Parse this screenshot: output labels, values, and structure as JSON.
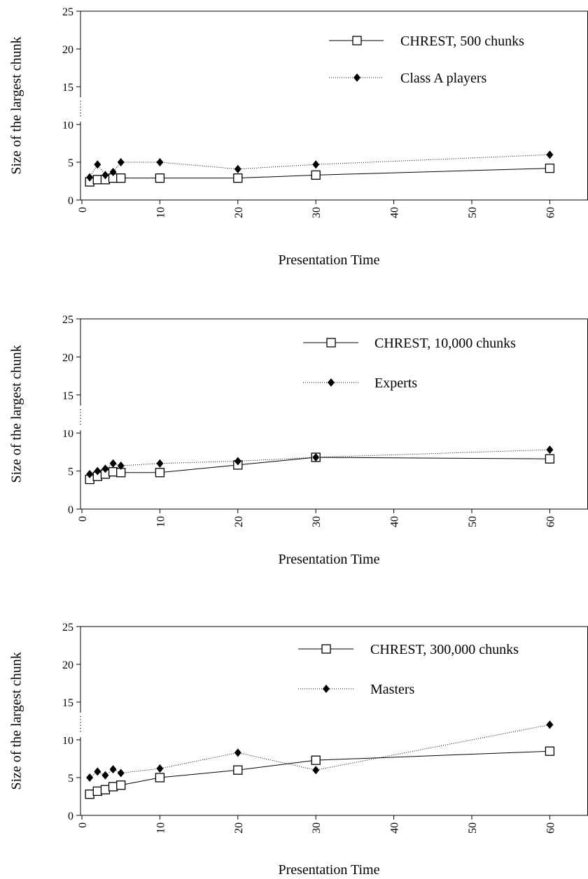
{
  "figure": {
    "background": "#ffffff"
  },
  "chart_data": [
    {
      "type": "line",
      "xlabel": "Presentation Time",
      "ylabel": "Size of the largest chunk",
      "xlim": [
        0,
        65
      ],
      "ylim": [
        0,
        25
      ],
      "xticks": [
        "0",
        "10",
        "20",
        "30",
        "40",
        "50",
        "60"
      ],
      "yticks": [
        "0",
        "5",
        "10",
        "15",
        "20",
        "25"
      ],
      "axis_break_between": [
        10,
        15
      ],
      "legend": "top-right",
      "grid": false,
      "series": [
        {
          "name": "CHREST, 500 chunks",
          "marker": "open-square",
          "line": "solid",
          "x": [
            1,
            2,
            3,
            4,
            5,
            10,
            20,
            30,
            60
          ],
          "y": [
            2.4,
            2.7,
            2.7,
            2.9,
            2.9,
            2.9,
            2.9,
            3.3,
            4.2
          ]
        },
        {
          "name": "Class A players",
          "marker": "filled-diamond",
          "line": "dotted",
          "x": [
            1,
            2,
            3,
            4,
            5,
            10,
            20,
            30,
            60
          ],
          "y": [
            3.0,
            4.7,
            3.3,
            3.7,
            5.0,
            5.0,
            4.1,
            4.7,
            6.0
          ]
        }
      ]
    },
    {
      "type": "line",
      "xlabel": "Presentation Time",
      "ylabel": "Size of the largest chunk",
      "xlim": [
        0,
        65
      ],
      "ylim": [
        0,
        25
      ],
      "xticks": [
        "0",
        "10",
        "20",
        "30",
        "40",
        "50",
        "60"
      ],
      "yticks": [
        "0",
        "5",
        "10",
        "15",
        "20",
        "25"
      ],
      "axis_break_between": [
        10,
        15
      ],
      "legend": "top-right",
      "grid": false,
      "series": [
        {
          "name": "CHREST, 10,000 chunks",
          "marker": "open-square",
          "line": "solid",
          "x": [
            1,
            2,
            3,
            4,
            5,
            10,
            20,
            30,
            60
          ],
          "y": [
            3.9,
            4.3,
            4.6,
            4.9,
            4.8,
            4.8,
            5.8,
            6.8,
            6.6
          ]
        },
        {
          "name": "Experts",
          "marker": "filled-diamond",
          "line": "dotted",
          "x": [
            1,
            2,
            3,
            4,
            5,
            10,
            20,
            30,
            60
          ],
          "y": [
            4.6,
            5.0,
            5.3,
            6.0,
            5.7,
            6.0,
            6.3,
            6.8,
            7.8
          ]
        }
      ]
    },
    {
      "type": "line",
      "xlabel": "Presentation Time",
      "ylabel": "Size of the largest chunk",
      "xlim": [
        0,
        65
      ],
      "ylim": [
        0,
        25
      ],
      "xticks": [
        "0",
        "10",
        "20",
        "30",
        "40",
        "50",
        "60"
      ],
      "yticks": [
        "0",
        "5",
        "10",
        "15",
        "20",
        "25"
      ],
      "axis_break_between": [
        10,
        15
      ],
      "legend": "top-right",
      "grid": false,
      "series": [
        {
          "name": "CHREST, 300,000 chunks",
          "marker": "open-square",
          "line": "solid",
          "x": [
            1,
            2,
            3,
            4,
            5,
            10,
            20,
            30,
            60
          ],
          "y": [
            2.8,
            3.2,
            3.4,
            3.8,
            4.0,
            5.0,
            6.0,
            7.3,
            8.5
          ]
        },
        {
          "name": "Masters",
          "marker": "filled-diamond",
          "line": "dotted",
          "x": [
            1,
            2,
            3,
            4,
            5,
            10,
            20,
            30,
            60
          ],
          "y": [
            5.0,
            5.8,
            5.3,
            6.1,
            5.6,
            6.2,
            8.3,
            6.0,
            12.0
          ]
        }
      ]
    }
  ]
}
